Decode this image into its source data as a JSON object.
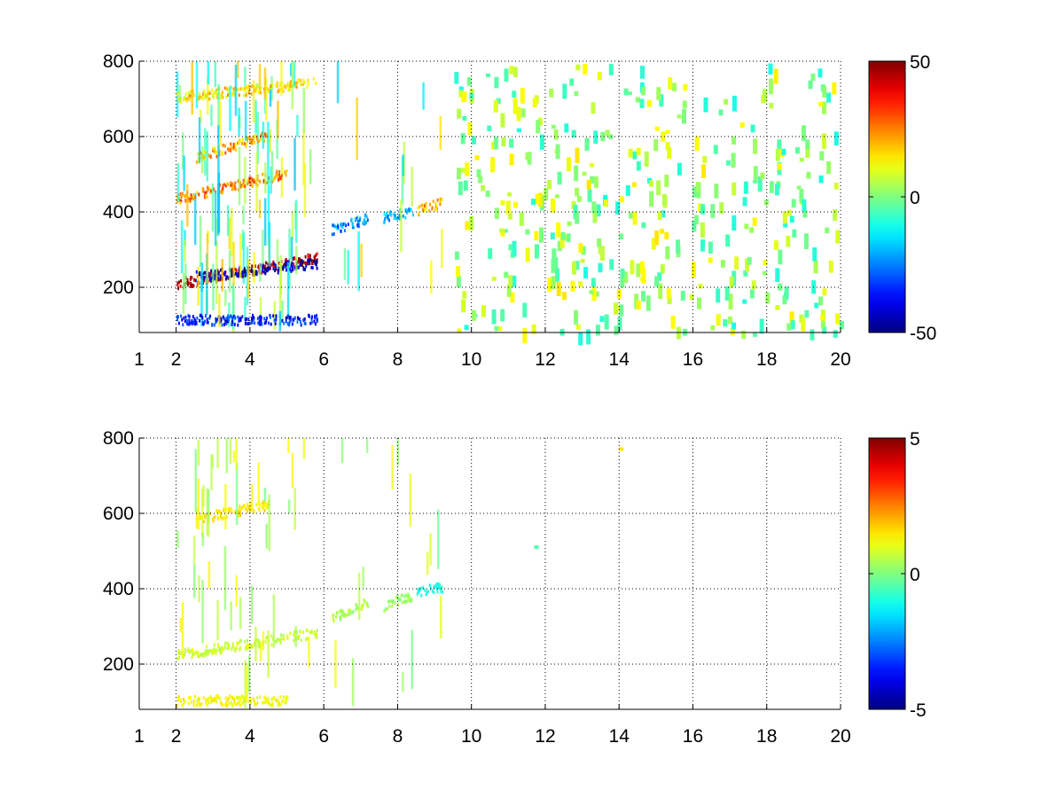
{
  "chart_data": [
    {
      "type": "heatmap",
      "title": "",
      "xlabel": "",
      "ylabel": "",
      "x_scale": "linear",
      "xlim": [
        1,
        20
      ],
      "ylim": [
        80,
        800
      ],
      "xticks": [
        1,
        2,
        4,
        6,
        8,
        10,
        12,
        14,
        16,
        18,
        20
      ],
      "yticks": [
        200,
        400,
        600,
        800
      ],
      "grid": true,
      "grid_style": "dotted",
      "colormap": "jet",
      "colorbar": {
        "range": [
          -50,
          50
        ],
        "ticks": [
          -50,
          0,
          50
        ]
      },
      "features": [
        {
          "x_range": [
            2,
            5.8
          ],
          "y_center": 205,
          "y_end": 275,
          "value": 45,
          "note": "strong positive band"
        },
        {
          "x_range": [
            2.5,
            5.8
          ],
          "y_center": 225,
          "y_end": 260,
          "value": -45,
          "note": "strong negative band"
        },
        {
          "x_range": [
            2,
            5
          ],
          "y_center": 430,
          "y_end": 500,
          "value": 25
        },
        {
          "x_range": [
            2.5,
            4.5
          ],
          "y_center": 540,
          "y_end": 600,
          "value": 20
        },
        {
          "x_range": [
            2,
            5.8
          ],
          "y_center": 700,
          "y_end": 740,
          "value": 15
        },
        {
          "x_range": [
            2,
            5.8
          ],
          "y_center": 110,
          "y_end": 110,
          "value": -35
        },
        {
          "x_range": [
            6.2,
            7.2
          ],
          "y_center": 350,
          "y_end": 380,
          "value": -25
        },
        {
          "x_range": [
            7.6,
            8.4
          ],
          "y_center": 380,
          "y_end": 400,
          "value": -20
        },
        {
          "x_range": [
            8.5,
            9.2
          ],
          "y_center": 400,
          "y_end": 420,
          "value": 20
        }
      ],
      "sparse_region": {
        "x_range": [
          9.5,
          20
        ],
        "y_range": [
          80,
          800
        ],
        "value_range": [
          -10,
          15
        ]
      }
    },
    {
      "type": "heatmap",
      "title": "",
      "xlabel": "",
      "ylabel": "",
      "x_scale": "linear",
      "xlim": [
        1,
        20
      ],
      "ylim": [
        80,
        800
      ],
      "xticks": [
        1,
        2,
        4,
        6,
        8,
        10,
        12,
        14,
        16,
        18,
        20
      ],
      "yticks": [
        200,
        400,
        600,
        800
      ],
      "grid": true,
      "grid_style": "dotted",
      "colormap": "jet",
      "colorbar": {
        "range": [
          -5,
          5
        ],
        "ticks": [
          -5,
          0,
          5
        ]
      },
      "features": [
        {
          "x_range": [
            2,
            5.8
          ],
          "y_center": 220,
          "y_end": 280,
          "value": 0.8
        },
        {
          "x_range": [
            2.5,
            4.5
          ],
          "y_center": 580,
          "y_end": 620,
          "value": 1.5
        },
        {
          "x_range": [
            2,
            5
          ],
          "y_center": 100,
          "y_end": 100,
          "value": 1.2
        },
        {
          "x_range": [
            6.2,
            7.2
          ],
          "y_center": 320,
          "y_end": 360,
          "value": 0.5
        },
        {
          "x_range": [
            7.6,
            8.4
          ],
          "y_center": 350,
          "y_end": 380,
          "value": 0.3
        },
        {
          "x_range": [
            8.5,
            9.2
          ],
          "y_center": 390,
          "y_end": 400,
          "value": -1.0
        }
      ],
      "sparse_points": [
        {
          "x": 11.7,
          "y": 515,
          "value": -0.5
        },
        {
          "x": 14,
          "y": 775,
          "value": 1.5
        }
      ]
    }
  ]
}
